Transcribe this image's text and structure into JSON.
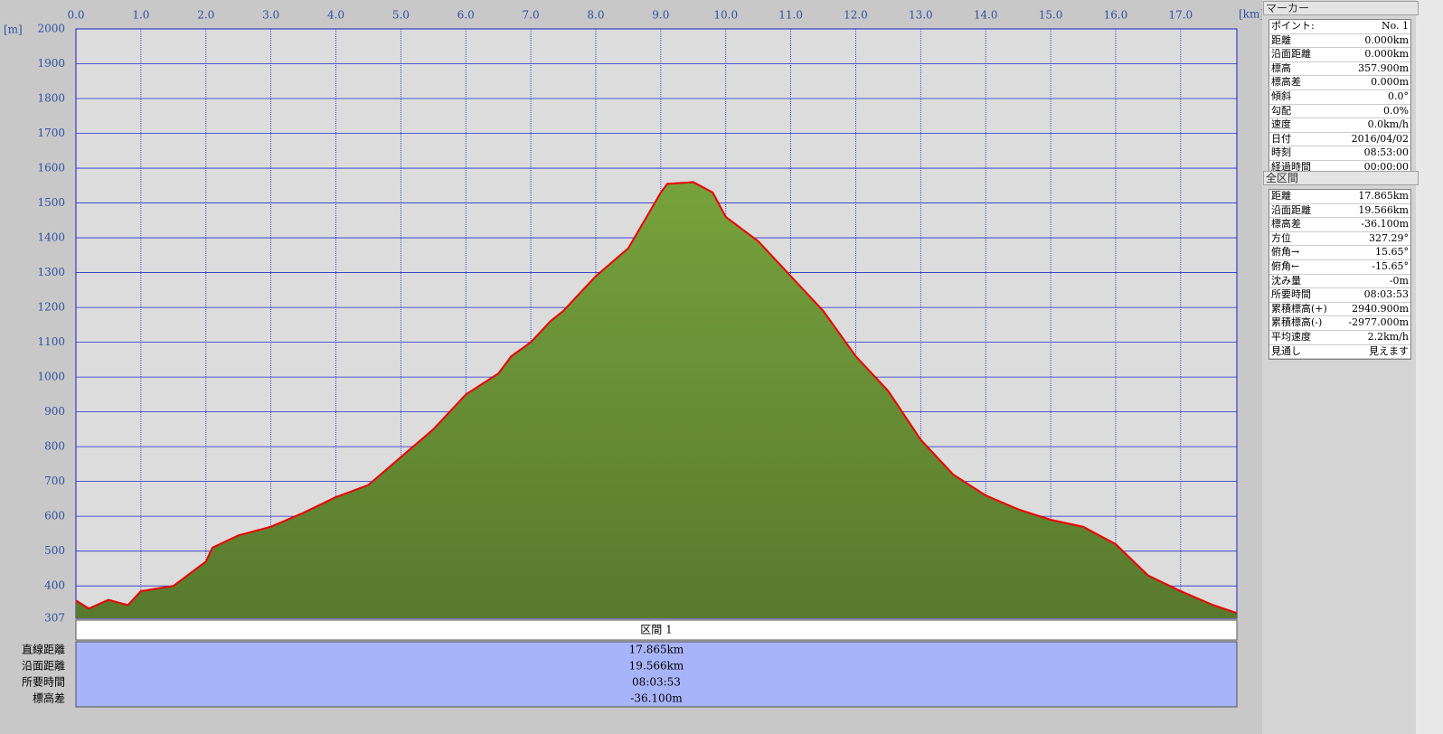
{
  "chart_data": {
    "type": "area",
    "x_label": "[km]",
    "y_label": "[m]",
    "x": [
      0,
      0.2,
      0.5,
      0.8,
      1.0,
      1.5,
      2.0,
      2.1,
      2.5,
      3.0,
      3.5,
      4.0,
      4.5,
      5.0,
      5.5,
      6.0,
      6.5,
      6.7,
      7.0,
      7.3,
      7.5,
      8.0,
      8.5,
      9.0,
      9.1,
      9.5,
      9.8,
      10.0,
      10.5,
      11.0,
      11.5,
      12.0,
      12.5,
      13.0,
      13.5,
      14.0,
      14.5,
      15.0,
      15.5,
      16.0,
      16.5,
      17.0,
      17.5,
      17.865
    ],
    "values": [
      358,
      335,
      360,
      345,
      385,
      400,
      470,
      510,
      545,
      570,
      610,
      655,
      690,
      770,
      850,
      950,
      1010,
      1060,
      1100,
      1160,
      1190,
      1290,
      1370,
      1530,
      1555,
      1560,
      1530,
      1460,
      1390,
      1290,
      1190,
      1060,
      960,
      820,
      720,
      660,
      620,
      590,
      570,
      520,
      430,
      385,
      345,
      322
    ],
    "color": "#ee0000",
    "fill": "#76a23c",
    "xlim": [
      0,
      17.865
    ],
    "xticks": [
      {
        "value": 0,
        "label": "0.0"
      },
      {
        "value": 1,
        "label": "1.0"
      },
      {
        "value": 2,
        "label": "2.0"
      },
      {
        "value": 3,
        "label": "3.0"
      },
      {
        "value": 4,
        "label": "4.0"
      },
      {
        "value": 5,
        "label": "5.0"
      },
      {
        "value": 6,
        "label": "6.0"
      },
      {
        "value": 7,
        "label": "7.0"
      },
      {
        "value": 8,
        "label": "8.0"
      },
      {
        "value": 9,
        "label": "9.0"
      },
      {
        "value": 10,
        "label": "10.0"
      },
      {
        "value": 11,
        "label": "11.0"
      },
      {
        "value": 12,
        "label": "12.0"
      },
      {
        "value": 13,
        "label": "13.0"
      },
      {
        "value": 14,
        "label": "14.0"
      },
      {
        "value": 15,
        "label": "15.0"
      },
      {
        "value": 16,
        "label": "16.0"
      },
      {
        "value": 17,
        "label": "17.0"
      }
    ],
    "ylim": [
      307,
      2000
    ],
    "yticks": [
      307,
      400,
      500,
      600,
      700,
      800,
      900,
      1000,
      1100,
      1200,
      1300,
      1400,
      1500,
      1600,
      1700,
      1800,
      1900,
      2000
    ],
    "grid": true
  },
  "section_table": {
    "header": "区間 1",
    "rows": [
      [
        "直線距離",
        "17.865km"
      ],
      [
        "沿面距離",
        "19.566km"
      ],
      [
        "所要時間",
        "08:03:53"
      ],
      [
        "標高差",
        "-36.100m"
      ]
    ]
  },
  "marker_panel": {
    "title": "マーカー",
    "rows": [
      [
        "ポイント:",
        "No. 1"
      ],
      [
        "距離",
        "0.000km"
      ],
      [
        "沿面距離",
        "0.000km"
      ],
      [
        "標高",
        "357.900m"
      ],
      [
        "標高差",
        "0.000m"
      ],
      [
        "傾斜",
        "0.0°"
      ],
      [
        "勾配",
        "0.0%"
      ],
      [
        "速度",
        "0.0km/h"
      ],
      [
        "日付",
        "2016/04/02"
      ],
      [
        "時刻",
        "08:53:00"
      ],
      [
        "経過時間",
        "00:00:00"
      ]
    ]
  },
  "total_panel": {
    "title": "全区間",
    "rows": [
      [
        "距離",
        "17.865km"
      ],
      [
        "沿面距離",
        "19.566km"
      ],
      [
        "標高差",
        "-36.100m"
      ],
      [
        "方位",
        "327.29°"
      ],
      [
        "俯角→",
        "15.65°"
      ],
      [
        "俯角←",
        "-15.65°"
      ],
      [
        "沈み量",
        "-0m"
      ],
      [
        "所要時間",
        "08:03:53"
      ],
      [
        "累積標高(+)",
        "2940.900m"
      ],
      [
        "累積標高(-)",
        "-2977.000m"
      ],
      [
        "平均速度",
        "2.2km/h"
      ],
      [
        "見通し",
        "見えます"
      ]
    ]
  }
}
